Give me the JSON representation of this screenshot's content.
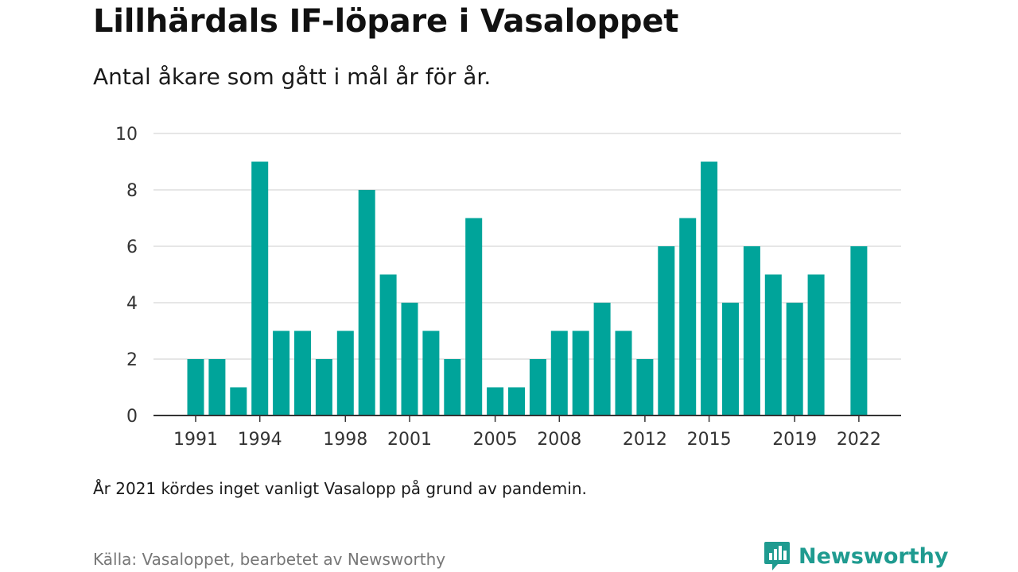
{
  "title": "Lillhärdals IF-löpare i Vasaloppet",
  "subtitle": "Antal åkare som gått i mål år för år.",
  "note": "År 2021 kördes inget vanligt Vasalopp på grund av pandemin.",
  "source": "Källa: Vasaloppet, bearbetet av Newsworthy",
  "brand": {
    "name": "Newsworthy",
    "icon": "newsworthy-logo-icon",
    "color": "#1f9b90"
  },
  "colors": {
    "bar": "#00a49a",
    "grid": "#dddddd",
    "axis": "#333333"
  },
  "chart_data": {
    "type": "bar",
    "title": "Lillhärdals IF-löpare i Vasaloppet",
    "xlabel": "",
    "ylabel": "",
    "ylim": [
      0,
      10
    ],
    "xlim": [
      1991,
      2022
    ],
    "y_ticks": [
      0,
      2,
      4,
      6,
      8,
      10
    ],
    "x_ticks": [
      1991,
      1994,
      1998,
      2001,
      2005,
      2008,
      2012,
      2015,
      2019,
      2022
    ],
    "grid": true,
    "legend": "none",
    "categories": [
      1991,
      1992,
      1993,
      1994,
      1995,
      1996,
      1997,
      1998,
      1999,
      2000,
      2001,
      2002,
      2003,
      2004,
      2005,
      2006,
      2007,
      2008,
      2009,
      2010,
      2011,
      2012,
      2013,
      2014,
      2015,
      2016,
      2017,
      2018,
      2019,
      2020,
      2021,
      2022
    ],
    "values": [
      2,
      2,
      1,
      9,
      3,
      3,
      2,
      3,
      8,
      5,
      4,
      3,
      2,
      7,
      1,
      1,
      2,
      3,
      3,
      4,
      3,
      2,
      6,
      7,
      9,
      4,
      6,
      5,
      4,
      5,
      null,
      6
    ]
  }
}
